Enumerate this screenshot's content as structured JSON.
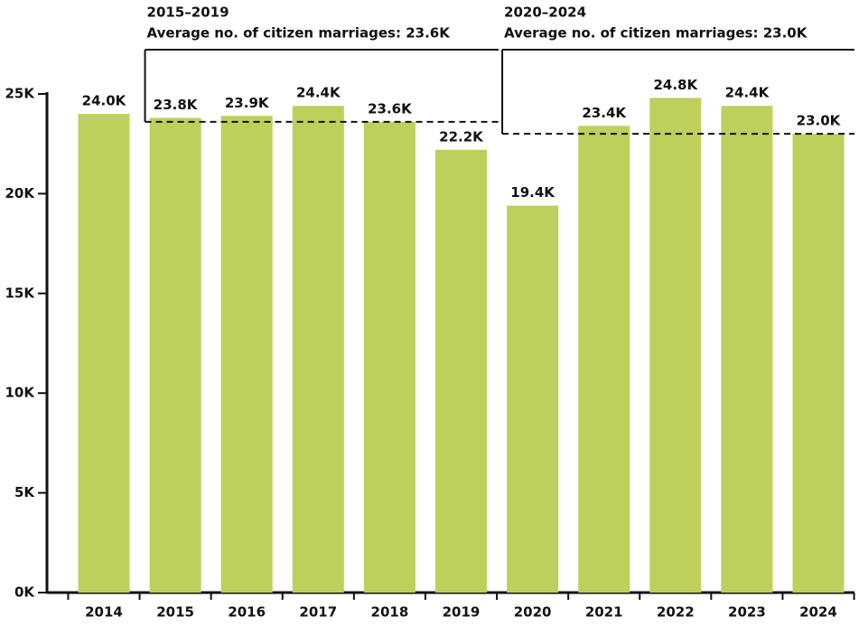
{
  "chart_data": {
    "type": "bar",
    "categories": [
      "2014",
      "2015",
      "2016",
      "2017",
      "2018",
      "2019",
      "2020",
      "2021",
      "2022",
      "2023",
      "2024"
    ],
    "values": [
      24000,
      23800,
      23900,
      24400,
      23600,
      22200,
      19400,
      23400,
      24800,
      24400,
      23000
    ],
    "value_labels": [
      "24.0K",
      "23.8K",
      "23.9K",
      "24.4K",
      "23.6K",
      "22.2K",
      "19.4K",
      "23.4K",
      "24.8K",
      "24.4K",
      "23.0K"
    ],
    "color": "#bfcf5c",
    "ylim": [
      0,
      25000
    ],
    "yticks": [
      {
        "value": 0,
        "label": "0K"
      },
      {
        "value": 5000,
        "label": "5K"
      },
      {
        "value": 10000,
        "label": "10K"
      },
      {
        "value": 15000,
        "label": "15K"
      },
      {
        "value": 20000,
        "label": "20K"
      },
      {
        "value": 25000,
        "label": "25K"
      }
    ],
    "annotations": [
      {
        "title": "2015–2019",
        "text": "Average no. of citizen marriages: 23.6K",
        "value": 23600,
        "first": "2015",
        "last": "2019"
      },
      {
        "title": "2020–2024",
        "text": "Average no. of citizen marriages: 23.0K",
        "value": 23000,
        "first": "2020",
        "last": "2024"
      }
    ]
  }
}
